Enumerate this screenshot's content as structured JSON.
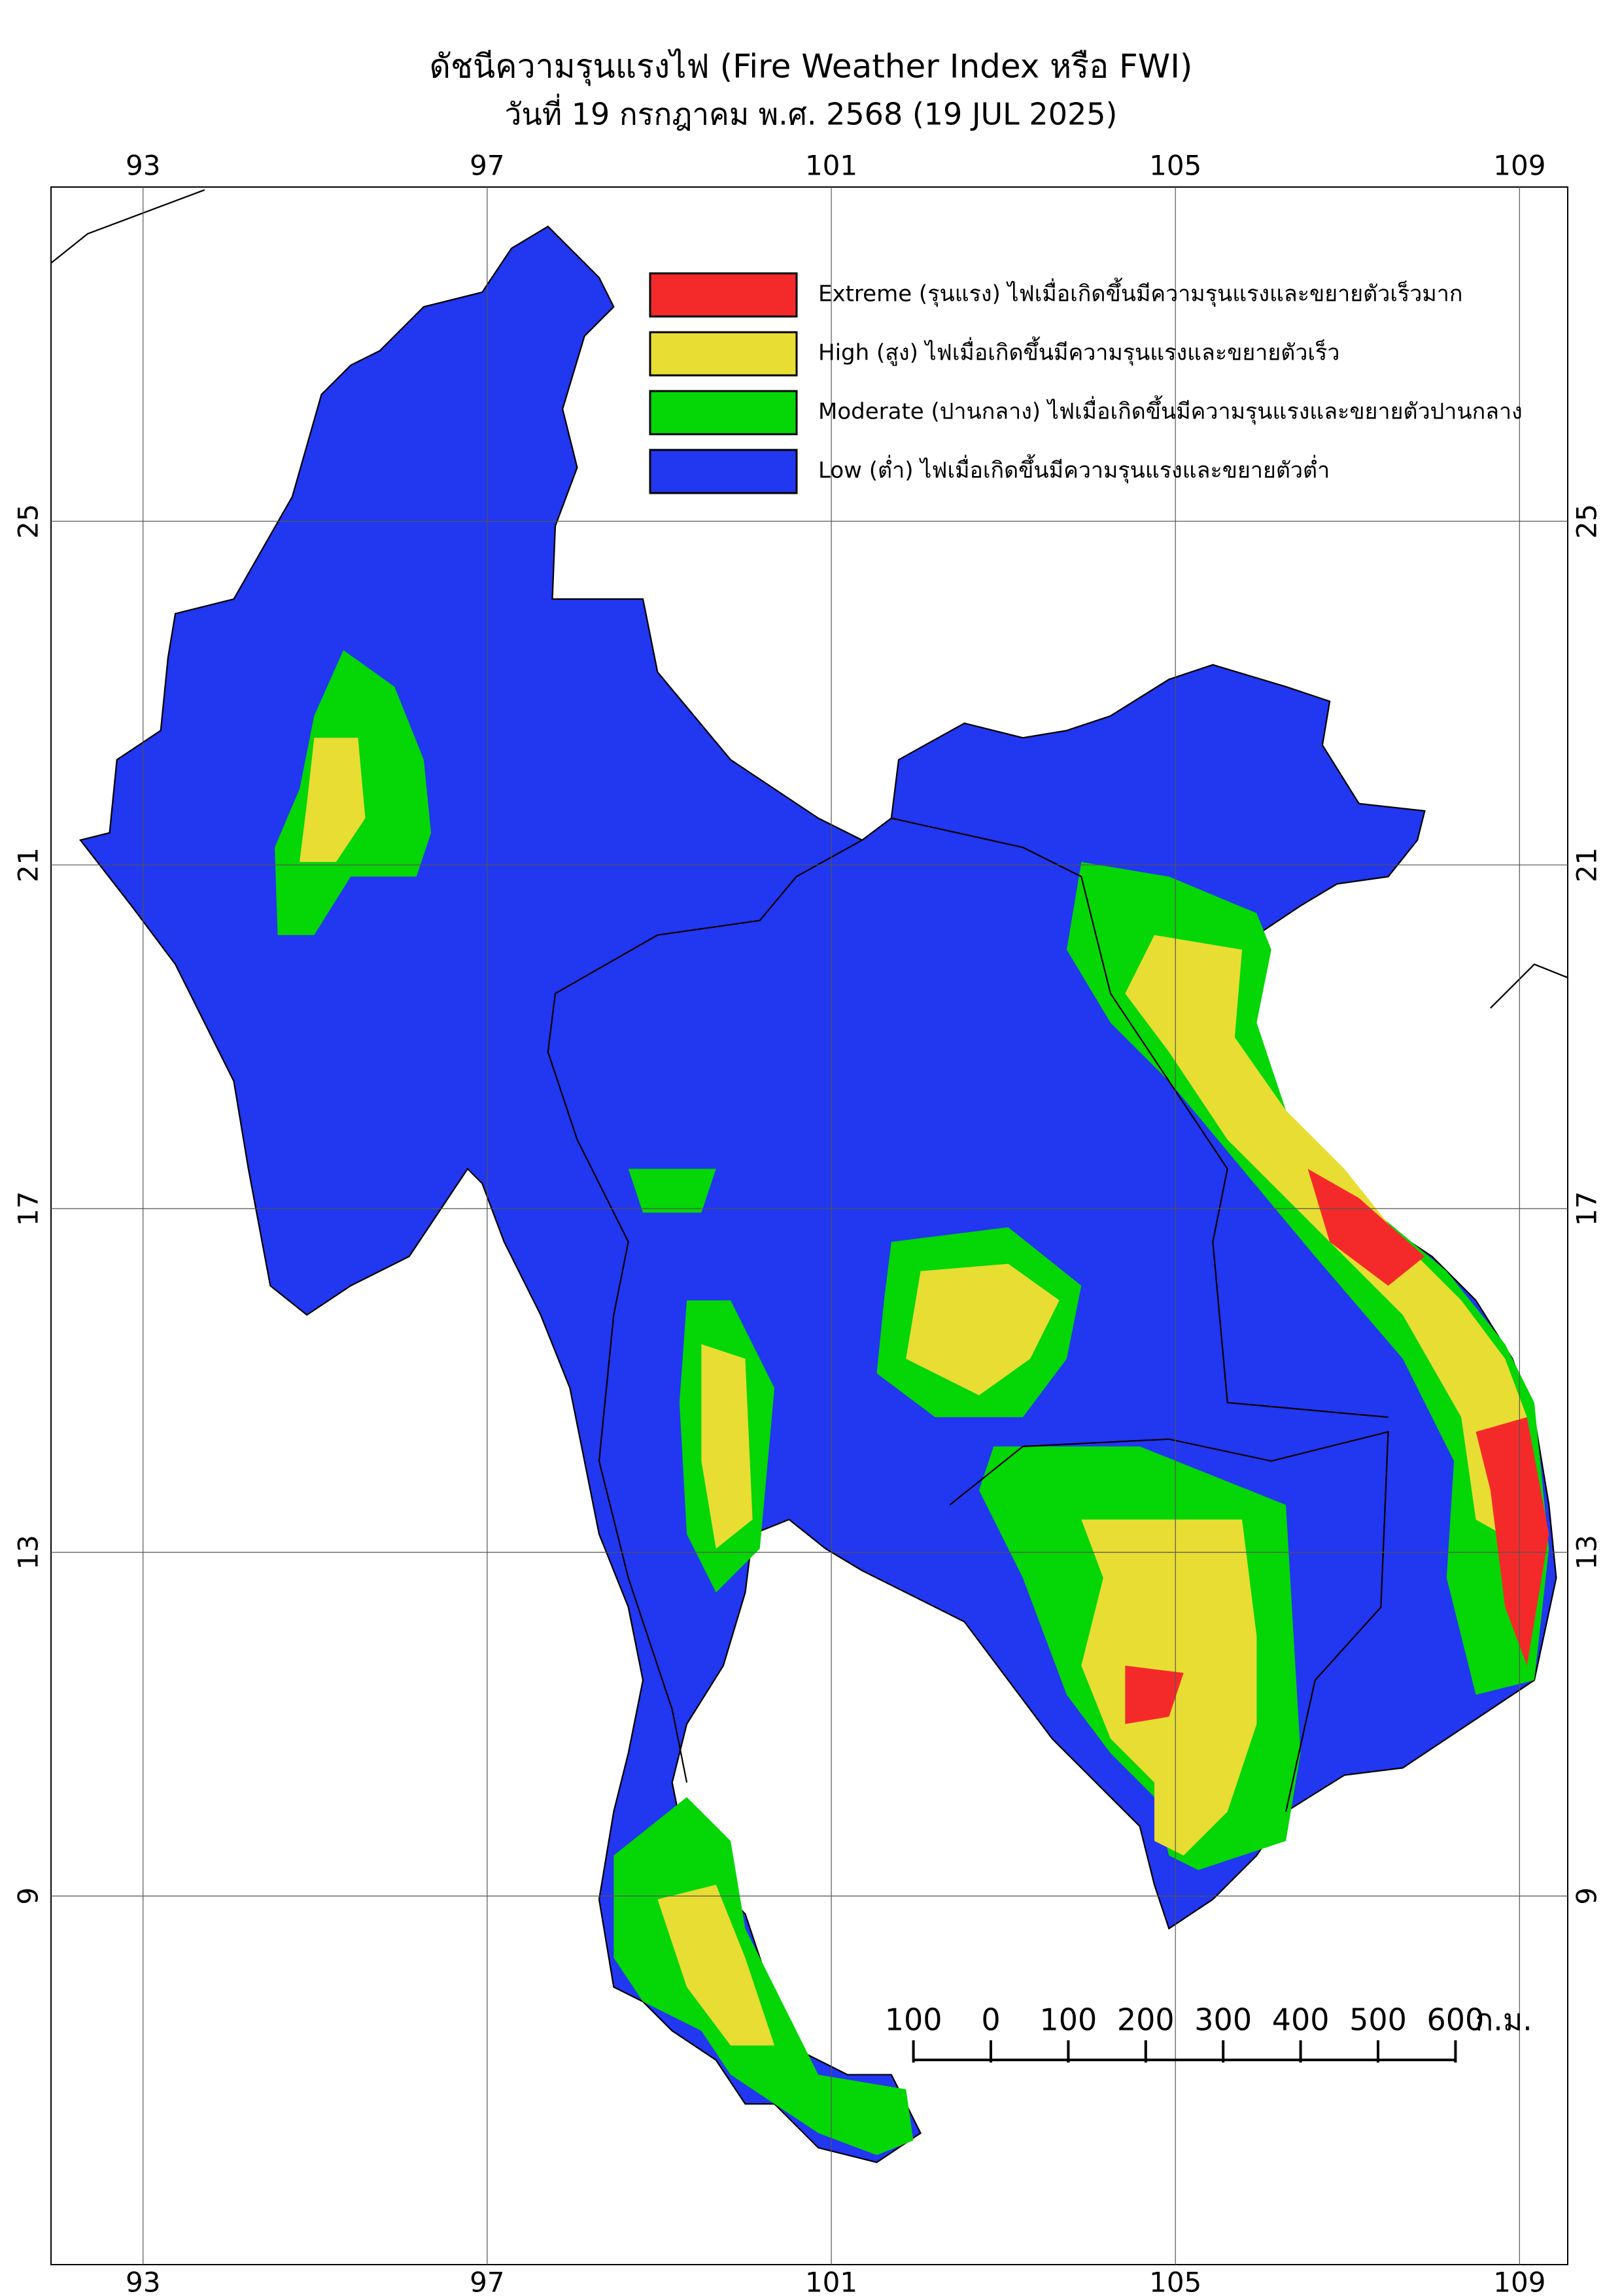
{
  "header": {
    "title": "ดัชนีความรุนแรงไฟ (Fire Weather Index หรือ FWI)",
    "subtitle": "วันที่ 19 กรกฎาคม พ.ศ. 2568 (19 JUL 2025)"
  },
  "map": {
    "lonlim": [
      91.93,
      109.56
    ],
    "latlim": [
      4.71,
      28.89
    ],
    "lonticks": [
      93,
      97,
      101,
      105,
      109
    ],
    "latticks": [
      25,
      21,
      17,
      13,
      9
    ]
  },
  "legend": {
    "items": [
      {
        "label": "Extreme (รุนแรง) ไฟเมื่อเกิดขึ้นมีความรุนแรงและขยายตัวเร็วมาก",
        "color": "#f42a2a"
      },
      {
        "label": "High (สูง) ไฟเมื่อเกิดขึ้นมีความรุนแรงและขยายตัวเร็ว",
        "color": "#e8dd32"
      },
      {
        "label": "Moderate (ปานกลาง) ไฟเมื่อเกิดขึ้นมีความรุนแรงและขยายตัวปานกลาง",
        "color": "#05d605"
      },
      {
        "label": "Low (ต่ำ) ไฟเมื่อเกิดขึ้นมีความรุนแรงและขยายตัวต่ำ",
        "color": "#2137f0"
      }
    ]
  },
  "scale_bar": {
    "ticks": [
      {
        "value": -100,
        "label": "100"
      },
      0,
      100,
      200,
      300,
      400,
      500,
      600
    ],
    "unit": "ก.ม."
  }
}
